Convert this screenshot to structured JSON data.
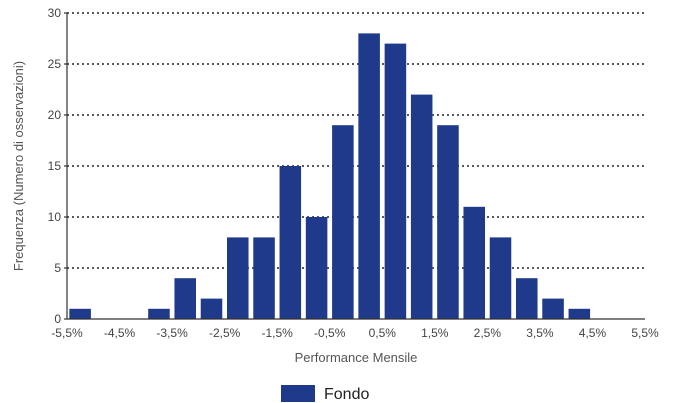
{
  "chart_data": {
    "type": "bar",
    "xlabel": "Performance Mensile",
    "ylabel": "Frequenza (Numero di osservazioni)",
    "ylim": [
      0,
      30
    ],
    "yticks": [
      "0",
      "5",
      "10",
      "15",
      "20",
      "25",
      "30"
    ],
    "xticks": [
      "-5,5%",
      "-4,5%",
      "-3,5%",
      "-2,5%",
      "-1,5%",
      "-0,5%",
      "0,5%",
      "1,5%",
      "2,5%",
      "3,5%",
      "4,5%",
      "5,5%"
    ],
    "xlim": [
      -5.5,
      5.5
    ],
    "bins": [
      {
        "center": -5.25,
        "value": 1
      },
      {
        "center": -4.75,
        "value": 0
      },
      {
        "center": -4.25,
        "value": 0
      },
      {
        "center": -3.75,
        "value": 1
      },
      {
        "center": -3.25,
        "value": 4
      },
      {
        "center": -2.75,
        "value": 2
      },
      {
        "center": -2.25,
        "value": 8
      },
      {
        "center": -1.75,
        "value": 8
      },
      {
        "center": -1.25,
        "value": 15
      },
      {
        "center": -0.75,
        "value": 10
      },
      {
        "center": -0.25,
        "value": 19
      },
      {
        "center": 0.25,
        "value": 28
      },
      {
        "center": 0.75,
        "value": 27
      },
      {
        "center": 1.25,
        "value": 22
      },
      {
        "center": 1.75,
        "value": 19
      },
      {
        "center": 2.25,
        "value": 11
      },
      {
        "center": 2.75,
        "value": 8
      },
      {
        "center": 3.25,
        "value": 4
      },
      {
        "center": 3.75,
        "value": 2
      },
      {
        "center": 4.25,
        "value": 1
      },
      {
        "center": 4.75,
        "value": 0
      },
      {
        "center": 5.25,
        "value": 0
      }
    ],
    "series": [
      {
        "name": "Fondo",
        "color": "#1f3a8a"
      }
    ],
    "grid": true,
    "legend": "bottom-center"
  }
}
